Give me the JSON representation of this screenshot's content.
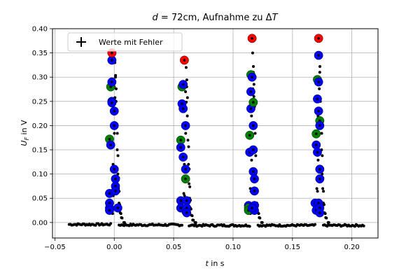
{
  "chart_data": {
    "type": "scatter",
    "title": {
      "lead": "d",
      "eq": " = 72cm, Aufnahme zu Δ",
      "tail": "T"
    },
    "xlabel": {
      "var": "t",
      "unit": " in s"
    },
    "ylabel": {
      "var": "U",
      "sub": "F",
      "unit": " in V"
    },
    "xlim": [
      -0.052,
      0.222
    ],
    "ylim": [
      -0.032,
      0.4
    ],
    "xticks": [
      -0.05,
      0.0,
      0.05,
      0.1,
      0.15,
      0.2
    ],
    "xtick_labels": [
      "−0.05",
      "0.00",
      "0.05",
      "0.10",
      "0.15",
      "0.20"
    ],
    "yticks": [
      0.0,
      0.05,
      0.1,
      0.15,
      0.2,
      0.25,
      0.3,
      0.35,
      0.4
    ],
    "ytick_labels": [
      "0.00",
      "0.05",
      "0.10",
      "0.15",
      "0.20",
      "0.25",
      "0.30",
      "0.35",
      "0.40"
    ],
    "grid": true,
    "legend": {
      "placement": "top-left",
      "entries": [
        {
          "label": "Werte mit Fehler",
          "marker": "plus"
        }
      ]
    },
    "colors": {
      "samples": "#000000",
      "blue": "#0000ff",
      "green": "#008000",
      "red": "#ff0000",
      "grid": "#b0b0b0"
    },
    "baseline_segments": [
      {
        "from": -0.038,
        "to": -0.003,
        "level": -0.004
      },
      {
        "from": 0.004,
        "to": 0.057,
        "level": -0.005
      },
      {
        "from": 0.063,
        "to": 0.114,
        "level": -0.006
      },
      {
        "from": 0.121,
        "to": 0.169,
        "level": -0.006
      },
      {
        "from": 0.176,
        "to": 0.21,
        "level": -0.006
      }
    ],
    "samples_per_segment": [
      34,
      50,
      48,
      46,
      33
    ],
    "peaks": [
      {
        "t": 0.0,
        "rise": [
          [
            -0.002,
            0.02
          ],
          [
            -0.0015,
            0.06
          ],
          [
            -0.001,
            0.12
          ],
          [
            -0.0005,
            0.2
          ],
          [
            0.0,
            0.28
          ],
          [
            0.0005,
            0.33
          ]
        ],
        "fall": [
          [
            0.001,
            0.3
          ],
          [
            0.0015,
            0.25
          ],
          [
            0.002,
            0.2
          ],
          [
            0.0025,
            0.15
          ],
          [
            0.003,
            0.1
          ],
          [
            0.0035,
            0.07
          ],
          [
            0.004,
            0.04
          ],
          [
            0.005,
            0.02
          ],
          [
            0.006,
            0.01
          ],
          [
            0.008,
            0.0
          ]
        ],
        "markers": [
          {
            "t": -0.004,
            "u": 0.04,
            "c": "blue"
          },
          {
            "t": -0.004,
            "u": 0.03,
            "c": "blue"
          },
          {
            "t": -0.004,
            "u": 0.025,
            "c": "blue"
          },
          {
            "t": -0.004,
            "u": 0.06,
            "c": "blue"
          },
          {
            "t": -0.004,
            "u": 0.172,
            "c": "green"
          },
          {
            "t": -0.003,
            "u": 0.16,
            "c": "blue"
          },
          {
            "t": -0.003,
            "u": 0.28,
            "c": "green"
          },
          {
            "t": -0.002,
            "u": 0.25,
            "c": "blue"
          },
          {
            "t": -0.002,
            "u": 0.247,
            "c": "blue"
          },
          {
            "t": -0.002,
            "u": 0.29,
            "c": "blue"
          },
          {
            "t": -0.002,
            "u": 0.335,
            "c": "blue"
          },
          {
            "t": -0.002,
            "u": 0.35,
            "c": "red"
          },
          {
            "t": 0.0,
            "u": 0.23,
            "c": "blue"
          },
          {
            "t": 0.0,
            "u": 0.2,
            "c": "blue"
          },
          {
            "t": 0.0,
            "u": 0.11,
            "c": "blue"
          },
          {
            "t": 0.001,
            "u": 0.09,
            "c": "blue"
          },
          {
            "t": 0.001,
            "u": 0.075,
            "c": "blue"
          },
          {
            "t": 0.001,
            "u": 0.065,
            "c": "blue"
          },
          {
            "t": 0.003,
            "u": 0.03,
            "c": "blue"
          }
        ]
      },
      {
        "t": 0.06,
        "rise": [
          [
            0.058,
            0.02
          ],
          [
            0.0585,
            0.06
          ],
          [
            0.059,
            0.12
          ],
          [
            0.0595,
            0.2
          ],
          [
            0.06,
            0.27
          ],
          [
            0.0605,
            0.32
          ]
        ],
        "fall": [
          [
            0.061,
            0.28
          ],
          [
            0.0615,
            0.22
          ],
          [
            0.062,
            0.17
          ],
          [
            0.0625,
            0.12
          ],
          [
            0.063,
            0.08
          ],
          [
            0.0635,
            0.05
          ],
          [
            0.064,
            0.03
          ],
          [
            0.065,
            0.015
          ],
          [
            0.066,
            0.005
          ],
          [
            0.068,
            0.0
          ]
        ],
        "markers": [
          {
            "t": 0.056,
            "u": 0.045,
            "c": "blue"
          },
          {
            "t": 0.056,
            "u": 0.03,
            "c": "blue"
          },
          {
            "t": 0.056,
            "u": 0.17,
            "c": "green"
          },
          {
            "t": 0.056,
            "u": 0.155,
            "c": "blue"
          },
          {
            "t": 0.057,
            "u": 0.245,
            "c": "blue"
          },
          {
            "t": 0.057,
            "u": 0.28,
            "c": "green"
          },
          {
            "t": 0.058,
            "u": 0.235,
            "c": "blue"
          },
          {
            "t": 0.058,
            "u": 0.285,
            "c": "blue"
          },
          {
            "t": 0.058,
            "u": 0.135,
            "c": "blue"
          },
          {
            "t": 0.059,
            "u": 0.335,
            "c": "red"
          },
          {
            "t": 0.06,
            "u": 0.2,
            "c": "blue"
          },
          {
            "t": 0.06,
            "u": 0.11,
            "c": "blue"
          },
          {
            "t": 0.06,
            "u": 0.09,
            "c": "green"
          },
          {
            "t": 0.061,
            "u": 0.045,
            "c": "blue"
          },
          {
            "t": 0.061,
            "u": 0.03,
            "c": "blue"
          },
          {
            "t": 0.061,
            "u": 0.02,
            "c": "blue"
          }
        ]
      },
      {
        "t": 0.116,
        "rise": [
          [
            0.114,
            0.02
          ],
          [
            0.1145,
            0.07
          ],
          [
            0.115,
            0.14
          ],
          [
            0.1155,
            0.22
          ],
          [
            0.116,
            0.3
          ],
          [
            0.1165,
            0.35
          ]
        ],
        "fall": [
          [
            0.117,
            0.31
          ],
          [
            0.1175,
            0.26
          ],
          [
            0.118,
            0.2
          ],
          [
            0.1185,
            0.15
          ],
          [
            0.119,
            0.1
          ],
          [
            0.1195,
            0.07
          ],
          [
            0.12,
            0.04
          ],
          [
            0.121,
            0.02
          ],
          [
            0.122,
            0.01
          ],
          [
            0.124,
            0.0
          ]
        ],
        "markers": [
          {
            "t": 0.113,
            "u": 0.035,
            "c": "blue"
          },
          {
            "t": 0.113,
            "u": 0.03,
            "c": "green"
          },
          {
            "t": 0.113,
            "u": 0.025,
            "c": "green"
          },
          {
            "t": 0.114,
            "u": 0.145,
            "c": "blue"
          },
          {
            "t": 0.114,
            "u": 0.18,
            "c": "green"
          },
          {
            "t": 0.115,
            "u": 0.235,
            "c": "blue"
          },
          {
            "t": 0.115,
            "u": 0.27,
            "c": "blue"
          },
          {
            "t": 0.115,
            "u": 0.305,
            "c": "green"
          },
          {
            "t": 0.116,
            "u": 0.3,
            "c": "blue"
          },
          {
            "t": 0.116,
            "u": 0.38,
            "c": "red"
          },
          {
            "t": 0.117,
            "u": 0.248,
            "c": "green"
          },
          {
            "t": 0.117,
            "u": 0.2,
            "c": "blue"
          },
          {
            "t": 0.117,
            "u": 0.15,
            "c": "blue"
          },
          {
            "t": 0.117,
            "u": 0.105,
            "c": "blue"
          },
          {
            "t": 0.118,
            "u": 0.09,
            "c": "blue"
          },
          {
            "t": 0.118,
            "u": 0.065,
            "c": "blue"
          },
          {
            "t": 0.118,
            "u": 0.035,
            "c": "blue"
          },
          {
            "t": 0.118,
            "u": 0.025,
            "c": "blue"
          },
          {
            "t": 0.116,
            "u": 0.03,
            "c": "blue"
          }
        ]
      },
      {
        "t": 0.172,
        "rise": [
          [
            0.17,
            0.02
          ],
          [
            0.1705,
            0.07
          ],
          [
            0.171,
            0.14
          ],
          [
            0.1715,
            0.22
          ],
          [
            0.172,
            0.3
          ],
          [
            0.1725,
            0.35
          ]
        ],
        "fall": [
          [
            0.173,
            0.31
          ],
          [
            0.1735,
            0.25
          ],
          [
            0.174,
            0.2
          ],
          [
            0.1745,
            0.15
          ],
          [
            0.175,
            0.1
          ],
          [
            0.1755,
            0.07
          ],
          [
            0.176,
            0.04
          ],
          [
            0.177,
            0.02
          ],
          [
            0.178,
            0.01
          ],
          [
            0.18,
            0.0
          ]
        ],
        "markers": [
          {
            "t": 0.169,
            "u": 0.04,
            "c": "blue"
          },
          {
            "t": 0.17,
            "u": 0.025,
            "c": "blue"
          },
          {
            "t": 0.17,
            "u": 0.16,
            "c": "blue"
          },
          {
            "t": 0.17,
            "u": 0.183,
            "c": "green"
          },
          {
            "t": 0.171,
            "u": 0.145,
            "c": "blue"
          },
          {
            "t": 0.171,
            "u": 0.255,
            "c": "blue"
          },
          {
            "t": 0.171,
            "u": 0.295,
            "c": "green"
          },
          {
            "t": 0.172,
            "u": 0.29,
            "c": "blue"
          },
          {
            "t": 0.172,
            "u": 0.345,
            "c": "blue"
          },
          {
            "t": 0.172,
            "u": 0.38,
            "c": "red"
          },
          {
            "t": 0.172,
            "u": 0.23,
            "c": "blue"
          },
          {
            "t": 0.173,
            "u": 0.21,
            "c": "green"
          },
          {
            "t": 0.173,
            "u": 0.2,
            "c": "blue"
          },
          {
            "t": 0.173,
            "u": 0.11,
            "c": "blue"
          },
          {
            "t": 0.173,
            "u": 0.09,
            "c": "blue"
          },
          {
            "t": 0.172,
            "u": 0.04,
            "c": "blue"
          },
          {
            "t": 0.173,
            "u": 0.03,
            "c": "blue"
          },
          {
            "t": 0.173,
            "u": 0.02,
            "c": "blue"
          }
        ]
      }
    ]
  }
}
